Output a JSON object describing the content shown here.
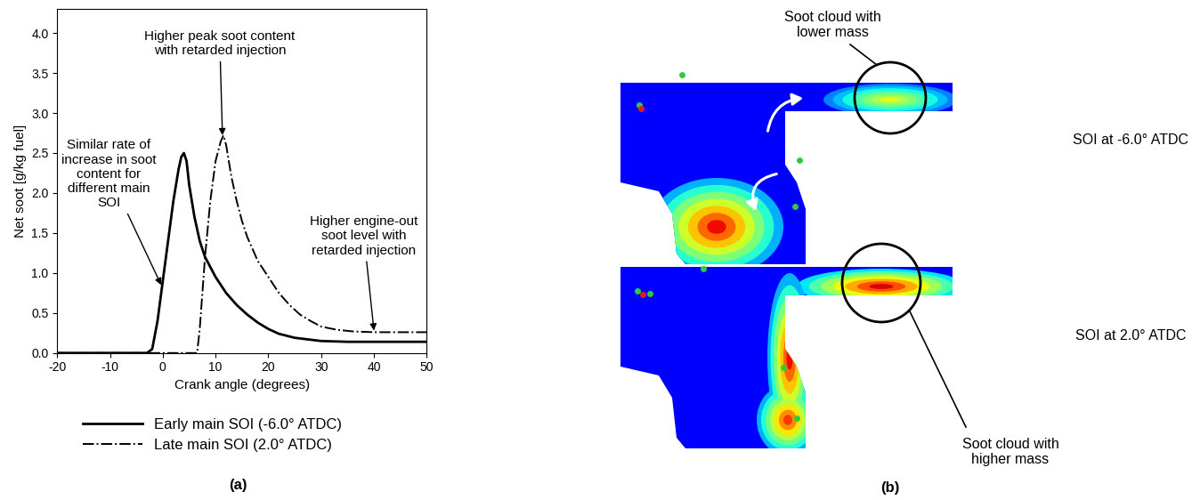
{
  "chart_data": {
    "type": "line",
    "title": "(a)",
    "x_label": "Crank angle (degrees)",
    "y_label": "Net soot [g/kg fuel]",
    "xlim": [
      -20,
      50
    ],
    "xticks": [
      -20,
      -10,
      0,
      10,
      20,
      30,
      40,
      50
    ],
    "ylim": [
      0.0,
      4.3
    ],
    "yticks": [
      0.0,
      0.5,
      1.0,
      1.5,
      2.0,
      2.5,
      3.0,
      3.5,
      4.0
    ],
    "legend": "bottom",
    "series": [
      {
        "name": "Early main SOI (-6.0° ATDC)",
        "color": "#000000",
        "line_style": "solid",
        "x": [
          -20,
          -3,
          -2,
          -1,
          0,
          1,
          2,
          3,
          3.5,
          4,
          4.5,
          5,
          6,
          7,
          8,
          10,
          12,
          14,
          16,
          18,
          20,
          22,
          25,
          30,
          35,
          40,
          50
        ],
        "values": [
          0.0,
          0.0,
          0.05,
          0.4,
          0.9,
          1.4,
          1.9,
          2.3,
          2.45,
          2.5,
          2.4,
          2.1,
          1.7,
          1.4,
          1.2,
          0.95,
          0.75,
          0.6,
          0.48,
          0.38,
          0.3,
          0.24,
          0.19,
          0.15,
          0.14,
          0.14,
          0.14
        ]
      },
      {
        "name": "Late main SOI (2.0° ATDC)",
        "color": "#000000",
        "line_style": "dashdot",
        "x": [
          -20,
          6.5,
          7,
          8,
          9,
          10,
          11,
          11.5,
          12,
          13,
          14,
          15,
          16,
          18,
          20,
          22,
          24,
          26,
          28,
          30,
          33,
          36,
          40,
          50
        ],
        "values": [
          0.0,
          0.0,
          0.3,
          1.2,
          1.9,
          2.4,
          2.65,
          2.72,
          2.6,
          2.2,
          1.9,
          1.65,
          1.45,
          1.15,
          0.95,
          0.75,
          0.6,
          0.48,
          0.4,
          0.33,
          0.29,
          0.27,
          0.26,
          0.26
        ]
      }
    ],
    "annotations": [
      {
        "text": "Similar rate of\nincrease in soot\ncontent for\ndifferent main\nSOI",
        "x": -0.3,
        "y": 0.85
      },
      {
        "text": "Higher peak soot content\nwith retarded injection",
        "x": 11.3,
        "y": 2.72
      },
      {
        "text": "Higher engine-out\nsoot level with\nretarded injection",
        "x": 40,
        "y": 0.28
      }
    ]
  },
  "diagram": {
    "panel_label": "(b)",
    "cases": [
      {
        "label": "SOI at -6.0° ATDC",
        "note": "Soot cloud with\nlower mass"
      },
      {
        "label": "SOI at 2.0° ATDC",
        "note": "Soot cloud with\nhigher mass"
      }
    ]
  }
}
